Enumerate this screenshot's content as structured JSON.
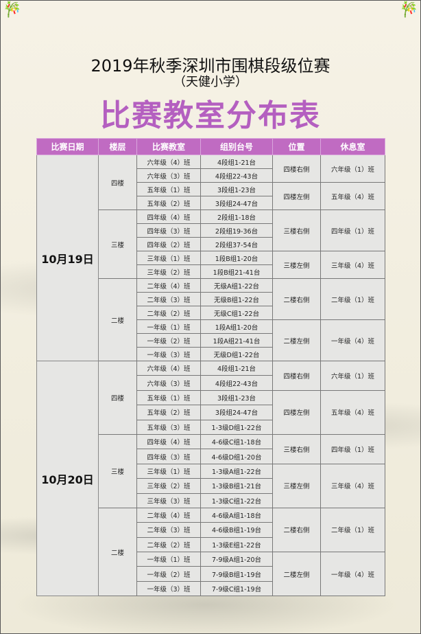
{
  "header": {
    "title": "2019年秋季深圳市围棋段级位赛",
    "venue": "（天健小学）",
    "subtitle": "比赛教室分布表",
    "accent_color": "#b45fc0",
    "header_color": "#c06bc2"
  },
  "table": {
    "columns": [
      "比赛日期",
      "楼层",
      "比赛教室",
      "组别台号",
      "位置",
      "休息室"
    ],
    "days": [
      {
        "date": "10月19日",
        "floors": [
          {
            "floor": "四楼",
            "positions": [
              {
                "position": "四楼右侧",
                "rest": "六年级（1）班",
                "rooms": [
                  {
                    "room": "六年级（4）班",
                    "group": "4段组1-21台"
                  },
                  {
                    "room": "六年级（3）班",
                    "group": "4段组22-43台"
                  }
                ]
              },
              {
                "position": "四楼左侧",
                "rest": "五年级（4）班",
                "rooms": [
                  {
                    "room": "五年级（1）班",
                    "group": "3段组1-23台"
                  },
                  {
                    "room": "五年级（2）班",
                    "group": "3段组24-47台"
                  }
                ]
              }
            ]
          },
          {
            "floor": "三楼",
            "positions": [
              {
                "position": "三楼右侧",
                "rest": "四年级（1）班",
                "rooms": [
                  {
                    "room": "四年级（4）班",
                    "group": "2段组1-18台"
                  },
                  {
                    "room": "四年级（3）班",
                    "group": "2段组19-36台"
                  },
                  {
                    "room": "四年级（2）班",
                    "group": "2段组37-54台"
                  }
                ]
              },
              {
                "position": "三楼左侧",
                "rest": "三年级（4）班",
                "rooms": [
                  {
                    "room": "三年级（1）班",
                    "group": "1段B组1-20台"
                  },
                  {
                    "room": "三年级（2）班",
                    "group": "1段B组21-41台"
                  }
                ]
              }
            ]
          },
          {
            "floor": "二楼",
            "positions": [
              {
                "position": "二楼右侧",
                "rest": "二年级（1）班",
                "rooms": [
                  {
                    "room": "二年级（4）班",
                    "group": "无级A组1-22台"
                  },
                  {
                    "room": "二年级（3）班",
                    "group": "无级B组1-22台"
                  },
                  {
                    "room": "二年级（2）班",
                    "group": "无级C组1-22台"
                  }
                ]
              },
              {
                "position": "二楼左侧",
                "rest": "一年级（4）班",
                "rooms": [
                  {
                    "room": "一年级（1）班",
                    "group": "1段A组1-20台"
                  },
                  {
                    "room": "一年级（2）班",
                    "group": "1段A组21-41台"
                  },
                  {
                    "room": "一年级（3）班",
                    "group": "无级D组1-22台"
                  }
                ]
              }
            ]
          }
        ]
      },
      {
        "date": "10月20日",
        "floors": [
          {
            "floor": "四楼",
            "positions": [
              {
                "position": "四楼右侧",
                "rest": "六年级（1）班",
                "rooms": [
                  {
                    "room": "六年级（4）班",
                    "group": "4段组1-21台"
                  },
                  {
                    "room": "六年级（3）班",
                    "group": "4段组22-43台"
                  }
                ]
              },
              {
                "position": "四楼左侧",
                "rest": "五年级（4）班",
                "rooms": [
                  {
                    "room": "五年级（1）班",
                    "group": "3段组1-23台"
                  },
                  {
                    "room": "五年级（2）班",
                    "group": "3段组24-47台"
                  },
                  {
                    "room": "五年级（3）班",
                    "group": "1-3级D组1-22台"
                  }
                ]
              }
            ]
          },
          {
            "floor": "三楼",
            "positions": [
              {
                "position": "三楼右侧",
                "rest": "四年级（1）班",
                "rooms": [
                  {
                    "room": "四年级（4）班",
                    "group": "4-6级C组1-18台"
                  },
                  {
                    "room": "四年级（3）班",
                    "group": "4-6级D组1-20台"
                  }
                ]
              },
              {
                "position": "三楼左侧",
                "rest": "三年级（4）班",
                "rooms": [
                  {
                    "room": "三年级（1）班",
                    "group": "1-3级A组1-22台"
                  },
                  {
                    "room": "三年级（2）班",
                    "group": "1-3级B组1-21台"
                  },
                  {
                    "room": "三年级（3）班",
                    "group": "1-3级C组1-22台"
                  }
                ]
              }
            ]
          },
          {
            "floor": "二楼",
            "positions": [
              {
                "position": "二楼右侧",
                "rest": "二年级（1）班",
                "rooms": [
                  {
                    "room": "二年级（4）班",
                    "group": "4-6级A组1-18台"
                  },
                  {
                    "room": "二年级（3）班",
                    "group": "4-6级B组1-19台"
                  },
                  {
                    "room": "二年级（2）班",
                    "group": "1-3级E组1-22台"
                  }
                ]
              },
              {
                "position": "二楼左侧",
                "rest": "一年级（4）班",
                "rooms": [
                  {
                    "room": "一年级（1）班",
                    "group": "7-9级A组1-20台"
                  },
                  {
                    "room": "一年级（2）班",
                    "group": "7-9级B组1-19台"
                  },
                  {
                    "room": "一年级（3）班",
                    "group": "7-9级C组1-19台"
                  }
                ]
              }
            ]
          }
        ]
      }
    ]
  }
}
